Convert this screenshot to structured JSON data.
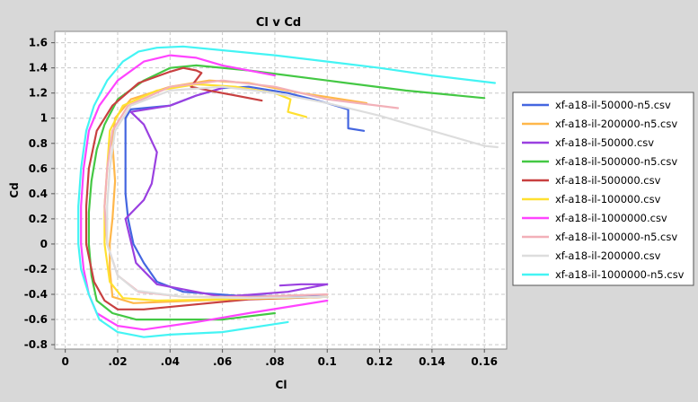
{
  "chart_data": {
    "type": "line",
    "title": "Cl v Cd",
    "xlabel": "Cl",
    "ylabel": "Cd",
    "xlim": [
      -0.004,
      0.1685
    ],
    "ylim": [
      -0.835,
      1.69
    ],
    "x_ticks": [
      0,
      0.02,
      0.04,
      0.06,
      0.08,
      0.1,
      0.12,
      0.14,
      0.16
    ],
    "x_tick_labels": [
      "0",
      ".02",
      ".04",
      ".06",
      ".08",
      "0.1",
      "0.12",
      "0.14",
      "0.16"
    ],
    "y_ticks": [
      -0.8,
      -0.6,
      -0.4,
      -0.2,
      0,
      0.2,
      0.4,
      0.6,
      0.8,
      1,
      1.2,
      1.4,
      1.6
    ],
    "y_tick_labels": [
      "-0.8",
      "-0.6",
      "-0.4",
      "-0.2",
      "0",
      "0.2",
      "0.4",
      "0.6",
      "0.8",
      "1",
      "1.2",
      "1.4",
      "1.6"
    ],
    "grid": true,
    "legend_position": "right",
    "series": [
      {
        "name": "xf-a18-il-50000-n5.csv",
        "color": "#4466e0",
        "points": [
          [
            0.1,
            -0.42
          ],
          [
            0.065,
            -0.41
          ],
          [
            0.045,
            -0.38
          ],
          [
            0.035,
            -0.3
          ],
          [
            0.03,
            -0.15
          ],
          [
            0.026,
            0.0
          ],
          [
            0.024,
            0.2
          ],
          [
            0.023,
            0.4
          ],
          [
            0.023,
            0.6
          ],
          [
            0.023,
            0.8
          ],
          [
            0.023,
            1.0
          ],
          [
            0.025,
            1.07
          ],
          [
            0.04,
            1.1
          ],
          [
            0.05,
            1.18
          ],
          [
            0.06,
            1.24
          ],
          [
            0.07,
            1.25
          ],
          [
            0.085,
            1.2
          ],
          [
            0.1,
            1.12
          ],
          [
            0.108,
            1.07
          ],
          [
            0.108,
            0.92
          ],
          [
            0.114,
            0.9
          ]
        ]
      },
      {
        "name": "xf-a18-il-200000-n5.csv",
        "color": "#ffb74a",
        "points": [
          [
            0.1,
            -0.42
          ],
          [
            0.05,
            -0.45
          ],
          [
            0.026,
            -0.47
          ],
          [
            0.018,
            -0.42
          ],
          [
            0.017,
            -0.2
          ],
          [
            0.017,
            0.0
          ],
          [
            0.018,
            0.2
          ],
          [
            0.019,
            0.5
          ],
          [
            0.018,
            0.8
          ],
          [
            0.019,
            1.0
          ],
          [
            0.025,
            1.15
          ],
          [
            0.04,
            1.25
          ],
          [
            0.055,
            1.3
          ],
          [
            0.07,
            1.28
          ],
          [
            0.09,
            1.2
          ],
          [
            0.115,
            1.12
          ]
        ]
      },
      {
        "name": "xf-a18-il-50000.csv",
        "color": "#9a40e0",
        "points": [
          [
            0.082,
            -0.33
          ],
          [
            0.09,
            -0.32
          ],
          [
            0.1,
            -0.32
          ],
          [
            0.085,
            -0.38
          ],
          [
            0.06,
            -0.42
          ],
          [
            0.035,
            -0.32
          ],
          [
            0.027,
            -0.15
          ],
          [
            0.023,
            0.2
          ],
          [
            0.03,
            0.35
          ],
          [
            0.033,
            0.48
          ],
          [
            0.035,
            0.73
          ],
          [
            0.03,
            0.95
          ],
          [
            0.025,
            1.05
          ],
          [
            0.04,
            1.1
          ],
          [
            0.05,
            1.18
          ],
          [
            0.06,
            1.24
          ]
        ]
      },
      {
        "name": "xf-a18-il-500000-n5.csv",
        "color": "#44c844",
        "points": [
          [
            0.08,
            -0.55
          ],
          [
            0.06,
            -0.6
          ],
          [
            0.04,
            -0.6
          ],
          [
            0.027,
            -0.6
          ],
          [
            0.018,
            -0.55
          ],
          [
            0.012,
            -0.45
          ],
          [
            0.01,
            -0.25
          ],
          [
            0.009,
            0.0
          ],
          [
            0.009,
            0.25
          ],
          [
            0.01,
            0.5
          ],
          [
            0.012,
            0.75
          ],
          [
            0.015,
            0.95
          ],
          [
            0.02,
            1.15
          ],
          [
            0.03,
            1.3
          ],
          [
            0.04,
            1.4
          ],
          [
            0.05,
            1.42
          ],
          [
            0.07,
            1.38
          ],
          [
            0.1,
            1.3
          ],
          [
            0.13,
            1.22
          ],
          [
            0.16,
            1.16
          ]
        ]
      },
      {
        "name": "xf-a18-il-500000.csv",
        "color": "#c84040",
        "points": [
          [
            0.1,
            -0.42
          ],
          [
            0.07,
            -0.44
          ],
          [
            0.05,
            -0.48
          ],
          [
            0.03,
            -0.52
          ],
          [
            0.02,
            -0.52
          ],
          [
            0.015,
            -0.45
          ],
          [
            0.011,
            -0.3
          ],
          [
            0.008,
            0.0
          ],
          [
            0.008,
            0.3
          ],
          [
            0.009,
            0.6
          ],
          [
            0.012,
            0.9
          ],
          [
            0.018,
            1.1
          ],
          [
            0.028,
            1.28
          ],
          [
            0.04,
            1.37
          ],
          [
            0.045,
            1.4
          ],
          [
            0.05,
            1.38
          ],
          [
            0.052,
            1.36
          ],
          [
            0.048,
            1.25
          ],
          [
            0.055,
            1.22
          ],
          [
            0.075,
            1.14
          ]
        ]
      },
      {
        "name": "xf-a18-il-100000.csv",
        "color": "#ffe030",
        "points": [
          [
            0.1,
            -0.42
          ],
          [
            0.06,
            -0.44
          ],
          [
            0.035,
            -0.45
          ],
          [
            0.022,
            -0.43
          ],
          [
            0.017,
            -0.3
          ],
          [
            0.015,
            0.0
          ],
          [
            0.015,
            0.3
          ],
          [
            0.016,
            0.6
          ],
          [
            0.017,
            0.9
          ],
          [
            0.022,
            1.1
          ],
          [
            0.035,
            1.22
          ],
          [
            0.05,
            1.27
          ],
          [
            0.065,
            1.25
          ],
          [
            0.08,
            1.2
          ],
          [
            0.086,
            1.15
          ],
          [
            0.085,
            1.05
          ],
          [
            0.092,
            1.01
          ]
        ]
      },
      {
        "name": "xf-a18-il-1000000.csv",
        "color": "#ff44ff",
        "points": [
          [
            0.1,
            -0.45
          ],
          [
            0.07,
            -0.55
          ],
          [
            0.05,
            -0.62
          ],
          [
            0.03,
            -0.68
          ],
          [
            0.02,
            -0.65
          ],
          [
            0.012,
            -0.55
          ],
          [
            0.009,
            -0.4
          ],
          [
            0.007,
            -0.2
          ],
          [
            0.006,
            0.0
          ],
          [
            0.006,
            0.3
          ],
          [
            0.007,
            0.6
          ],
          [
            0.009,
            0.9
          ],
          [
            0.013,
            1.1
          ],
          [
            0.02,
            1.3
          ],
          [
            0.03,
            1.45
          ],
          [
            0.04,
            1.5
          ],
          [
            0.05,
            1.48
          ],
          [
            0.06,
            1.42
          ],
          [
            0.08,
            1.34
          ]
        ]
      },
      {
        "name": "xf-a18-il-100000-n5.csv",
        "color": "#f2b0b8",
        "points": [
          [
            0.1,
            -0.4
          ],
          [
            0.07,
            -0.42
          ],
          [
            0.045,
            -0.42
          ],
          [
            0.028,
            -0.38
          ],
          [
            0.02,
            -0.25
          ],
          [
            0.016,
            0.0
          ],
          [
            0.015,
            0.3
          ],
          [
            0.016,
            0.6
          ],
          [
            0.018,
            0.9
          ],
          [
            0.024,
            1.1
          ],
          [
            0.04,
            1.25
          ],
          [
            0.06,
            1.3
          ],
          [
            0.08,
            1.25
          ],
          [
            0.1,
            1.15
          ],
          [
            0.127,
            1.08
          ]
        ]
      },
      {
        "name": "xf-a18-il-200000.csv",
        "color": "#dddddd",
        "points": [
          [
            0.1,
            -0.42
          ],
          [
            0.07,
            -0.43
          ],
          [
            0.045,
            -0.42
          ],
          [
            0.027,
            -0.37
          ],
          [
            0.02,
            -0.25
          ],
          [
            0.016,
            0.0
          ],
          [
            0.016,
            0.3
          ],
          [
            0.017,
            0.6
          ],
          [
            0.019,
            0.9
          ],
          [
            0.025,
            1.1
          ],
          [
            0.04,
            1.22
          ],
          [
            0.06,
            1.25
          ],
          [
            0.08,
            1.2
          ],
          [
            0.1,
            1.12
          ],
          [
            0.12,
            1.02
          ],
          [
            0.14,
            0.9
          ],
          [
            0.16,
            0.78
          ],
          [
            0.165,
            0.77
          ]
        ]
      },
      {
        "name": "xf-a18-il-1000000-n5.csv",
        "color": "#44f4f4",
        "points": [
          [
            0.085,
            -0.62
          ],
          [
            0.06,
            -0.7
          ],
          [
            0.04,
            -0.72
          ],
          [
            0.03,
            -0.74
          ],
          [
            0.02,
            -0.7
          ],
          [
            0.013,
            -0.6
          ],
          [
            0.009,
            -0.4
          ],
          [
            0.006,
            -0.2
          ],
          [
            0.005,
            0.0
          ],
          [
            0.005,
            0.3
          ],
          [
            0.006,
            0.6
          ],
          [
            0.008,
            0.9
          ],
          [
            0.011,
            1.1
          ],
          [
            0.016,
            1.3
          ],
          [
            0.022,
            1.45
          ],
          [
            0.028,
            1.53
          ],
          [
            0.035,
            1.56
          ],
          [
            0.045,
            1.57
          ],
          [
            0.06,
            1.54
          ],
          [
            0.08,
            1.5
          ],
          [
            0.1,
            1.45
          ],
          [
            0.12,
            1.4
          ],
          [
            0.14,
            1.34
          ],
          [
            0.164,
            1.28
          ]
        ]
      }
    ]
  }
}
